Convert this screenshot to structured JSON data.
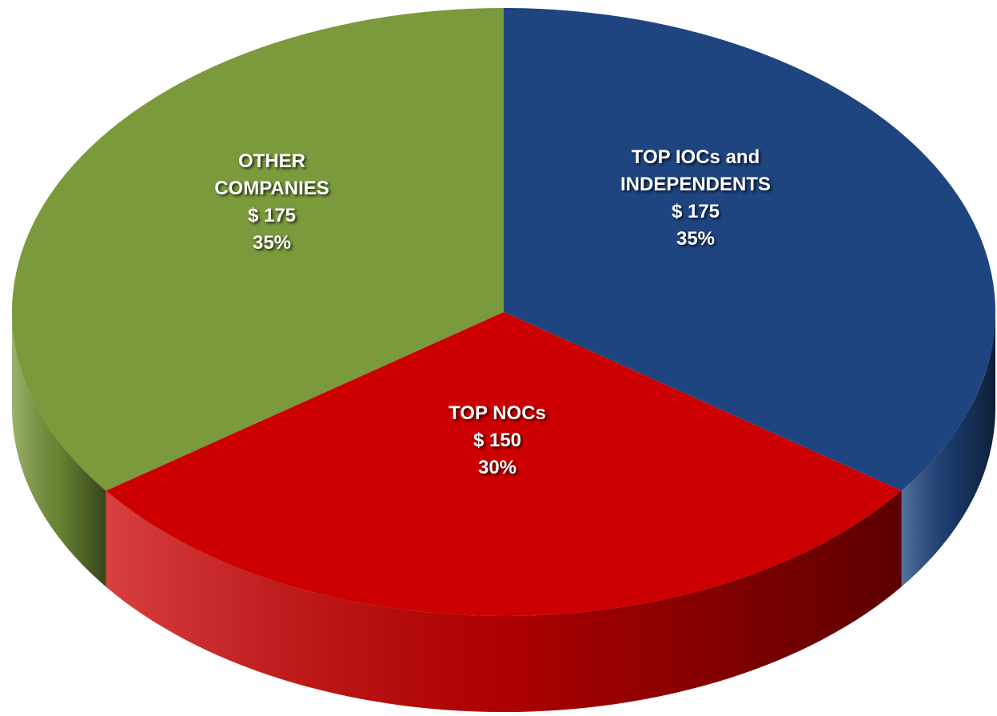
{
  "chart_data": {
    "type": "pie",
    "categories": [
      "TOP IOCs and INDEPENDENTS",
      "TOP NOCs",
      "OTHER COMPANIES"
    ],
    "values": [
      175,
      150,
      175
    ],
    "value_labels": [
      "$ 175",
      "$ 150",
      "$ 175"
    ],
    "percents": [
      35,
      30,
      35
    ],
    "percent_labels": [
      "35%",
      "30%",
      "35%"
    ],
    "colors": [
      "#1f4580",
      "#cc0000",
      "#7a9a3c"
    ]
  }
}
